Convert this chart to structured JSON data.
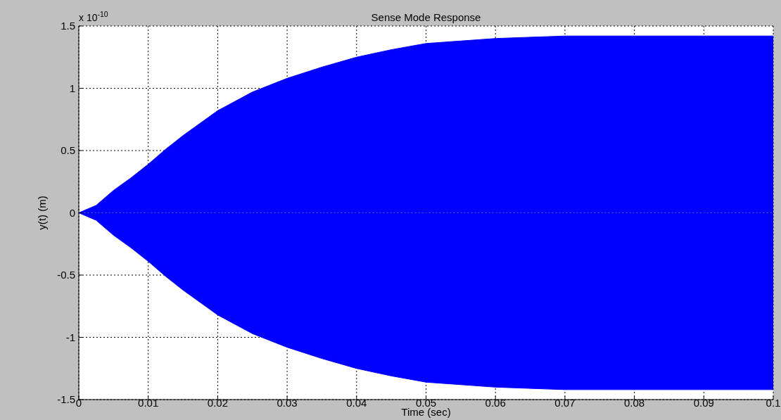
{
  "chart_data": {
    "type": "area",
    "title": "Sense Mode Response",
    "xlabel": "Time (sec)",
    "ylabel": "y(t) (m)",
    "annotations": [
      "x 10$^{-10}$"
    ],
    "x": [
      0,
      0.0025,
      0.005,
      0.0075,
      0.01,
      0.0125,
      0.015,
      0.0175,
      0.02,
      0.025,
      0.03,
      0.035,
      0.04,
      0.045,
      0.05,
      0.055,
      0.06,
      0.07,
      0.08,
      0.09,
      0.1
    ],
    "series": [
      {
        "color": "#0000ff",
        "values": [
          0,
          0.06,
          0.18,
          0.28,
          0.39,
          0.51,
          0.62,
          0.72,
          0.82,
          0.97,
          1.08,
          1.17,
          1.25,
          1.31,
          1.36,
          1.38,
          1.4,
          1.42,
          1.42,
          1.42,
          1.42
        ]
      },
      {
        "color": "#0000ff",
        "values": [
          0,
          -0.06,
          -0.18,
          -0.28,
          -0.39,
          -0.51,
          -0.62,
          -0.72,
          -0.82,
          -0.97,
          -1.08,
          -1.17,
          -1.25,
          -1.31,
          -1.36,
          -1.38,
          -1.4,
          -1.42,
          -1.42,
          -1.42,
          -1.42
        ]
      }
    ],
    "xlim": [
      0,
      0.1
    ],
    "xticks": [
      0,
      0.01,
      0.02,
      0.03,
      0.04,
      0.05,
      0.06,
      0.07,
      0.08,
      0.09,
      0.1
    ],
    "ylim": [
      -1.5,
      1.5
    ],
    "yticks": [
      -1.5,
      -1,
      -0.5,
      0,
      0.5,
      1,
      1.5
    ],
    "grid": true,
    "legend": false
  }
}
